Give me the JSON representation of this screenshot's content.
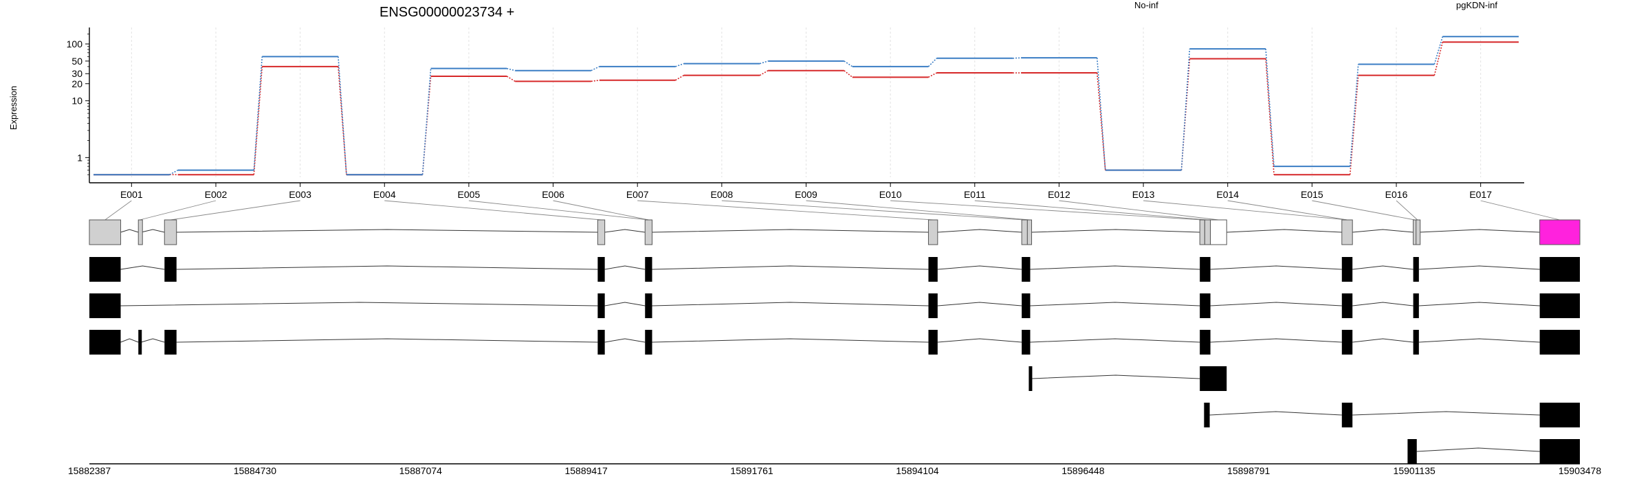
{
  "chart_data": {
    "type": "line",
    "title": "ENSG00000023734 +",
    "ylabel": "Expression",
    "y_scale": "log",
    "y_ticks": [
      "1",
      "10",
      "20",
      "30",
      "50",
      "100"
    ],
    "categories": [
      "E001",
      "E002",
      "E003",
      "E004",
      "E005",
      "E006",
      "E007",
      "E008",
      "E009",
      "E010",
      "E011",
      "E012",
      "E013",
      "E014",
      "E015",
      "E016",
      "E017"
    ],
    "series": [
      {
        "name": "No-inf",
        "color": "#d62728",
        "values": [
          0.5,
          0.5,
          40,
          0.5,
          27,
          22,
          23,
          28,
          34,
          26,
          31,
          31,
          0.6,
          55,
          0.5,
          28,
          108
        ]
      },
      {
        "name": "pgKDN-inf",
        "color": "#3a7dc4",
        "values": [
          0.5,
          0.6,
          60,
          0.5,
          37,
          34,
          40,
          45,
          50,
          40,
          56,
          57,
          0.6,
          82,
          0.7,
          44,
          135
        ]
      }
    ],
    "genomic_axis_ticks": [
      "15882387",
      "15884730",
      "15887074",
      "15889417",
      "15891761",
      "15894104",
      "15896448",
      "15898791",
      "15901135",
      "15903478"
    ],
    "highlight_color": "#ff22dd",
    "transcripts": [
      [
        [
          15882387,
          15882830
        ],
        [
          15883450,
          15883620
        ],
        [
          15889580,
          15889680
        ],
        [
          15890250,
          15890350
        ],
        [
          15894260,
          15894390
        ],
        [
          15895580,
          15895700
        ],
        [
          15898100,
          15898250
        ],
        [
          15900110,
          15900260
        ],
        [
          15901120,
          15901200
        ],
        [
          15902910,
          15903478
        ]
      ],
      [
        [
          15882387,
          15882830
        ],
        [
          15889580,
          15889680
        ],
        [
          15890250,
          15890350
        ],
        [
          15894260,
          15894390
        ],
        [
          15895580,
          15895700
        ],
        [
          15898100,
          15898250
        ],
        [
          15900110,
          15900260
        ],
        [
          15901120,
          15901200
        ],
        [
          15902910,
          15903478
        ]
      ],
      [
        [
          15882387,
          15882830
        ],
        [
          15883080,
          15883120
        ],
        [
          15883450,
          15883620
        ],
        [
          15889580,
          15889680
        ],
        [
          15890250,
          15890350
        ],
        [
          15894260,
          15894390
        ],
        [
          15895580,
          15895700
        ],
        [
          15898100,
          15898250
        ],
        [
          15900110,
          15900260
        ],
        [
          15901120,
          15901200
        ],
        [
          15902910,
          15903478
        ]
      ],
      [
        [
          15895680,
          15895720
        ],
        [
          15898100,
          15898480
        ]
      ],
      [
        [
          15898160,
          15898240
        ],
        [
          15900110,
          15900260
        ],
        [
          15902910,
          15903478
        ]
      ],
      [
        [
          15901040,
          15901170
        ],
        [
          15902910,
          15903478
        ]
      ]
    ],
    "exon_bins": [
      [
        15882387,
        15882830
      ],
      [
        15883080,
        15883120
      ],
      [
        15883450,
        15883620
      ],
      [
        15889580,
        15889680
      ],
      [
        15890250,
        15890350
      ],
      [
        15894260,
        15894390
      ],
      [
        15895580,
        15895660
      ],
      [
        15895660,
        15895720
      ],
      [
        15898100,
        15898170
      ],
      [
        15898170,
        15898250
      ],
      [
        15898250,
        15898480
      ],
      [
        15900110,
        15900260
      ],
      [
        15901120,
        15901160
      ],
      [
        15901160,
        15901200
      ],
      [
        15902910,
        15903478
      ]
    ],
    "bin_exon_map": [
      0,
      1,
      1,
      2,
      2,
      3,
      4,
      5,
      6,
      7,
      8,
      9,
      10,
      10,
      11,
      11,
      12,
      13,
      14,
      15,
      16
    ]
  }
}
